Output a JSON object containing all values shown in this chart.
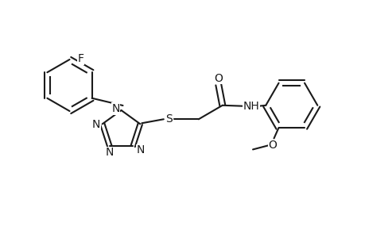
{
  "bg_color": "#ffffff",
  "line_color": "#1a1a1a",
  "line_width": 1.5,
  "font_size": 10,
  "fig_width": 4.6,
  "fig_height": 3.0,
  "dpi": 100,
  "xlim": [
    0,
    9.2
  ],
  "ylim": [
    0,
    6.0
  ]
}
